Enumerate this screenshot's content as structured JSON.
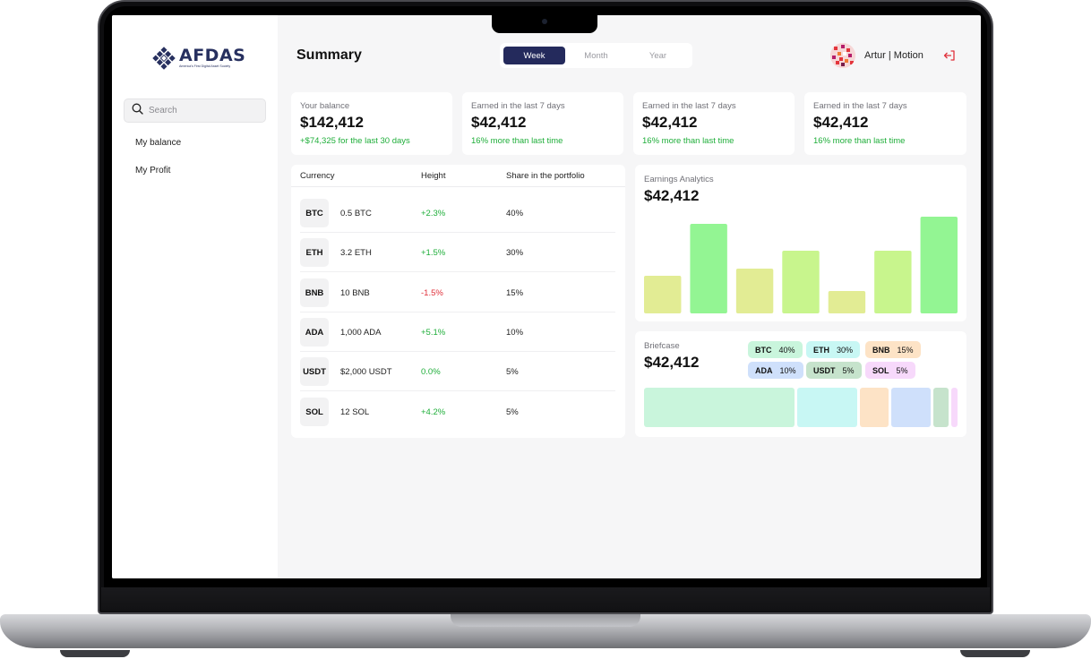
{
  "brand": {
    "name": "AFDAS",
    "tagline": "America's First Digital Asset Society"
  },
  "sidebar": {
    "search_placeholder": "Search",
    "items": [
      {
        "label": "My balance"
      },
      {
        "label": "My Profit"
      }
    ]
  },
  "header": {
    "title": "Summary",
    "period_tabs": [
      {
        "label": "Week",
        "active": true
      },
      {
        "label": "Month",
        "active": false
      },
      {
        "label": "Year",
        "active": false
      }
    ],
    "user_name": "Artur | Motion"
  },
  "stats": [
    {
      "label": "Your balance",
      "value": "$142,412",
      "sub": "+$74,325 for the last 30 days"
    },
    {
      "label": "Earned in the last 7 days",
      "value": "$42,412",
      "sub": "16% more than last time"
    },
    {
      "label": "Earned in the last 7 days",
      "value": "$42,412",
      "sub": "16% more than last time"
    },
    {
      "label": "Earned in the last 7 days",
      "value": "$42,412",
      "sub": "16% more than last time"
    }
  ],
  "table": {
    "headers": [
      "Currency",
      "Height",
      "Share in the portfolio"
    ],
    "rows": [
      {
        "coin": "BTC",
        "amount": "0.5 BTC",
        "change": "+2.3%",
        "share": "40%"
      },
      {
        "coin": "ETH",
        "amount": "3.2 ETH",
        "change": "+1.5%",
        "share": "30%"
      },
      {
        "coin": "BNB",
        "amount": "10 BNB",
        "change": "-1.5%",
        "share": "15%"
      },
      {
        "coin": "ADA",
        "amount": "1,000 ADA",
        "change": "+5.1%",
        "share": "10%"
      },
      {
        "coin": "USDT",
        "amount": "$2,000 USDT",
        "change": "0.0%",
        "share": "5%"
      },
      {
        "coin": "SOL",
        "amount": "12 SOL",
        "change": "+4.2%",
        "share": "5%"
      }
    ]
  },
  "colors": {
    "positive": "#1fae3a",
    "negative": "#e0313b",
    "accent": "#242a5c"
  },
  "analytics": {
    "label": "Earnings Analytics",
    "value": "$42,412"
  },
  "briefcase": {
    "label": "Briefcase",
    "value": "$42,412",
    "tags": [
      {
        "coin": "BTC",
        "pct": "40%",
        "color": "#c9f5dc"
      },
      {
        "coin": "ETH",
        "pct": "30%",
        "color": "#c8f7f4"
      },
      {
        "coin": "BNB",
        "pct": "15%",
        "color": "#fde3c6"
      },
      {
        "coin": "ADA",
        "pct": "10%",
        "color": "#cfe0fb"
      },
      {
        "coin": "USDT",
        "pct": "5%",
        "color": "#c6e3cc"
      },
      {
        "coin": "SOL",
        "pct": "5%",
        "color": "#f7d9fb"
      }
    ]
  },
  "chart_data": {
    "type": "bar",
    "values": [
      42,
      100,
      50,
      70,
      25,
      70,
      108
    ],
    "colors": [
      "#e2ec94",
      "#93f593",
      "#e2ec94",
      "#c8f58d",
      "#e2ec94",
      "#c8f58d",
      "#93f593"
    ]
  },
  "icons": {
    "search": "search-icon",
    "logout": "logout-icon",
    "logo": "diamond-grid-logo"
  }
}
